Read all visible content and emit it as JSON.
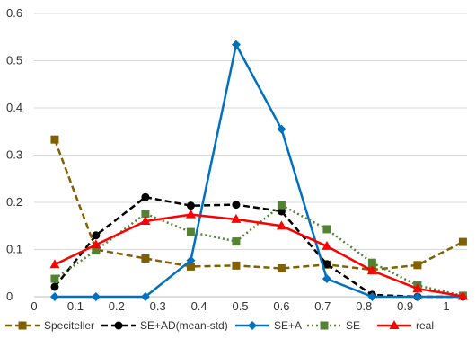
{
  "chart_data": {
    "type": "line",
    "title": "",
    "xlabel": "",
    "ylabel": "",
    "xlim": [
      0,
      1.05
    ],
    "ylim": [
      0,
      0.6
    ],
    "x_ticks": [
      "0",
      "0.1",
      "0.2",
      "0.3",
      "0.4",
      "0.5",
      "0.6",
      "0.7",
      "0.8",
      "0.9",
      "1"
    ],
    "y_ticks": [
      "0",
      "0.1",
      "0.2",
      "0.3",
      "0.4",
      "0.5",
      "0.6"
    ],
    "grid": "horizontal",
    "legend_position": "bottom",
    "series": [
      {
        "name": "Speciteller",
        "color": "#806000",
        "line_style": "dashed",
        "marker": "square",
        "x": [
          0.05,
          0.15,
          0.27,
          0.38,
          0.49,
          0.6,
          0.71,
          0.82,
          0.93,
          1.04
        ],
        "y": [
          0.333,
          0.1,
          0.081,
          0.064,
          0.066,
          0.06,
          0.068,
          0.057,
          0.067,
          0.116
        ]
      },
      {
        "name": "SE+AD(mean-std)",
        "color": "#000000",
        "line_style": "dashed",
        "marker": "circle",
        "x": [
          0.05,
          0.15,
          0.27,
          0.38,
          0.49,
          0.6,
          0.71,
          0.82,
          0.93,
          1.04
        ],
        "y": [
          0.021,
          0.13,
          0.211,
          0.193,
          0.195,
          0.181,
          0.069,
          0.004,
          0.0,
          0.0
        ]
      },
      {
        "name": "SE+A",
        "color": "#0070c0",
        "line_style": "solid",
        "marker": "diamond",
        "x": [
          0.05,
          0.15,
          0.27,
          0.38,
          0.49,
          0.6,
          0.71,
          0.82,
          0.93,
          1.04
        ],
        "y": [
          0.0,
          0.0,
          0.0,
          0.077,
          0.534,
          0.355,
          0.038,
          0.0,
          0.0,
          0.0
        ]
      },
      {
        "name": "SE",
        "color": "#548235",
        "line_style": "dotted",
        "marker": "square",
        "x": [
          0.05,
          0.15,
          0.27,
          0.38,
          0.49,
          0.6,
          0.71,
          0.82,
          0.93,
          1.04
        ],
        "y": [
          0.038,
          0.098,
          0.176,
          0.137,
          0.117,
          0.194,
          0.143,
          0.072,
          0.024,
          0.002
        ]
      },
      {
        "name": "real",
        "color": "#ff0000",
        "line_style": "solid",
        "marker": "triangle",
        "x": [
          0.05,
          0.15,
          0.27,
          0.38,
          0.49,
          0.6,
          0.71,
          0.82,
          0.93,
          1.04
        ],
        "y": [
          0.068,
          0.11,
          0.16,
          0.174,
          0.164,
          0.15,
          0.107,
          0.055,
          0.017,
          0.001
        ]
      }
    ]
  }
}
